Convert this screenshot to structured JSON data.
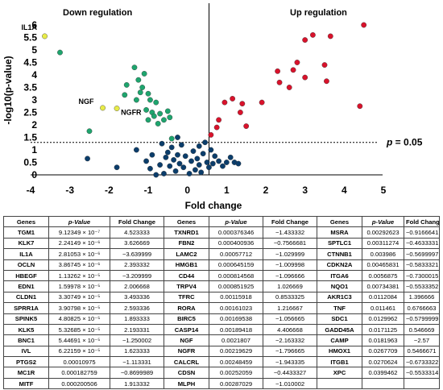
{
  "chart_data": {
    "type": "scatter",
    "xlabel": "Fold change",
    "ylabel": "-log10(p-value)",
    "xlim": [
      -4,
      5
    ],
    "ylim": [
      0,
      6
    ],
    "x_ticks": [
      "-4",
      "-3",
      "-2",
      "-1",
      "0",
      "1",
      "2",
      "3",
      "4",
      "5"
    ],
    "y_ticks": [
      "0",
      "0.5",
      "1",
      "1.5",
      "2",
      "2.5",
      "3",
      "3.5",
      "4",
      "4.5",
      "5",
      "5.5",
      "6"
    ],
    "threshold": {
      "y": 1.3,
      "label_prefix": "p",
      "label_suffix": " = 0.05"
    },
    "region_labels": {
      "down": "Down regulation",
      "up": "Up regulation"
    },
    "annotations": [
      {
        "text": "IL1A",
        "x": -3.64,
        "y": 5.55
      },
      {
        "text": "NGF",
        "x": -2.16,
        "y": 2.68
      },
      {
        "text": "NGFR",
        "x": -1.8,
        "y": 2.66
      }
    ],
    "series": [
      {
        "color": "#d9122b",
        "points": [
          [
            0.6,
            1.6
          ],
          [
            0.75,
            1.9
          ],
          [
            0.8,
            2.2
          ],
          [
            0.95,
            2.9
          ],
          [
            1.15,
            3.05
          ],
          [
            1.35,
            2.5
          ],
          [
            1.4,
            2.85
          ],
          [
            1.5,
            1.95
          ],
          [
            1.9,
            2.9
          ],
          [
            2.3,
            4.15
          ],
          [
            2.35,
            3.7
          ],
          [
            2.6,
            3.5
          ],
          [
            2.7,
            4.2
          ],
          [
            2.8,
            4.5
          ],
          [
            3.0,
            5.4
          ],
          [
            3.0,
            3.9
          ],
          [
            3.2,
            5.6
          ],
          [
            3.5,
            4.4
          ],
          [
            3.55,
            3.75
          ],
          [
            3.65,
            5.55
          ],
          [
            4.4,
            2.75
          ],
          [
            4.5,
            6.0
          ]
        ]
      },
      {
        "color": "#1ea56e",
        "points": [
          [
            -3.25,
            4.9
          ],
          [
            -2.5,
            1.75
          ],
          [
            -1.6,
            3.2
          ],
          [
            -1.55,
            3.6
          ],
          [
            -1.35,
            4.3
          ],
          [
            -1.3,
            3.0
          ],
          [
            -1.25,
            3.8
          ],
          [
            -1.2,
            3.3
          ],
          [
            -1.15,
            3.5
          ],
          [
            -1.1,
            4.05
          ],
          [
            -1.05,
            2.6
          ],
          [
            -1.0,
            2.2
          ],
          [
            -0.95,
            3.0
          ],
          [
            -0.9,
            2.5
          ],
          [
            -0.85,
            2.35
          ],
          [
            -0.8,
            2.9
          ],
          [
            -0.75,
            2.05
          ],
          [
            -0.7,
            2.45
          ],
          [
            -0.6,
            2.2
          ],
          [
            -0.5,
            2.55
          ],
          [
            -0.45,
            2.3
          ],
          [
            -0.4,
            1.45
          ],
          [
            -1.0,
            3.25
          ]
        ]
      },
      {
        "color": "#0b3d6b",
        "points": [
          [
            -2.55,
            0.65
          ],
          [
            -1.8,
            0.3
          ],
          [
            -1.05,
            0.55
          ],
          [
            -0.95,
            0.25
          ],
          [
            -0.9,
            0.8
          ],
          [
            -0.8,
            0.0
          ],
          [
            -0.7,
            0.4
          ],
          [
            -0.65,
            1.25
          ],
          [
            -0.6,
            0.05
          ],
          [
            -0.55,
            0.7
          ],
          [
            -0.5,
            0.9
          ],
          [
            -0.45,
            0.35
          ],
          [
            -0.4,
            1.1
          ],
          [
            -0.35,
            0.6
          ],
          [
            -0.3,
            0.15
          ],
          [
            -0.25,
            0.8
          ],
          [
            -0.2,
            0.45
          ],
          [
            -0.15,
            1.2
          ],
          [
            -0.1,
            0.3
          ],
          [
            -0.05,
            0.75
          ],
          [
            0.05,
            0.05
          ],
          [
            0.1,
            0.55
          ],
          [
            0.15,
            0.95
          ],
          [
            0.2,
            0.2
          ],
          [
            0.25,
            0.65
          ],
          [
            0.3,
            0.4
          ],
          [
            0.35,
            0.1
          ],
          [
            0.4,
            0.85
          ],
          [
            0.45,
            1.3
          ],
          [
            0.5,
            0.5
          ],
          [
            0.55,
            0.3
          ],
          [
            0.6,
            1.0
          ],
          [
            0.65,
            0.45
          ],
          [
            0.7,
            0.75
          ],
          [
            0.8,
            0.55
          ],
          [
            0.9,
            0.35
          ],
          [
            1.0,
            0.5
          ],
          [
            1.1,
            0.7
          ],
          [
            1.2,
            0.5
          ],
          [
            1.3,
            0.45
          ],
          [
            -1.3,
            1.0
          ],
          [
            -0.25,
            1.5
          ],
          [
            0.3,
            1.15
          ]
        ]
      },
      {
        "color": "#e8ec48",
        "points": [
          [
            -3.64,
            5.55
          ],
          [
            -2.16,
            2.68
          ],
          [
            -1.8,
            2.66
          ]
        ]
      }
    ]
  },
  "table": {
    "headers": [
      "Genes",
      "p-Value",
      "Fold Change",
      "Genes",
      "p-Value",
      "Fold Change",
      "Genes",
      "p-Value",
      "Fold Change"
    ],
    "rows": [
      [
        "TGM1",
        "9.12349 × 10⁻⁷",
        "4.523333",
        "TXNRD1",
        "0.000376346",
        "−1.433332",
        "MSRA",
        "0.00292623",
        "−0.9166641"
      ],
      [
        "KLK7",
        "2.24149 × 10⁻⁶",
        "3.626669",
        "FBN2",
        "0.000400936",
        "−0.7566681",
        "SPTLC1",
        "0.00311274",
        "−0.4633331"
      ],
      [
        "IL1A",
        "2.81053 × 10⁻⁶",
        "−3.639999",
        "LAMC2",
        "0.00057712",
        "−1.029999",
        "CTNNB1",
        "0.003986",
        "−0.5699997"
      ],
      [
        "OCLN",
        "3.86745 × 10⁻⁶",
        "2.393332",
        "HMGB1",
        "0.000645159",
        "−1.009998",
        "CDKN2A",
        "0.00465831",
        "−0.5833321"
      ],
      [
        "HBEGF",
        "1.13262 × 10⁻⁵",
        "−3.209999",
        "CD44",
        "0.000814568",
        "−1.096666",
        "ITGA6",
        "0.0056875",
        "−0.7300015"
      ],
      [
        "EDN1",
        "1.59978 × 10⁻⁵",
        "2.006668",
        "TRPV4",
        "0.000851925",
        "1.026669",
        "NQO1",
        "0.00734381",
        "−0.5533352"
      ],
      [
        "CLDN1",
        "3.30749 × 10⁻⁵",
        "3.493336",
        "TFRC",
        "0.00115918",
        "0.8533325",
        "AKR1C3",
        "0.0112084",
        "1.396666"
      ],
      [
        "SPRR1A",
        "3.90798 × 10⁻⁵",
        "2.593336",
        "RORA",
        "0.00161023",
        "1.216667",
        "TNF",
        "0.011461",
        "0.6766663"
      ],
      [
        "SPINK5",
        "4.80825 × 10⁻⁵",
        "1.893333",
        "BIRC5",
        "0.00169538",
        "−1.056665",
        "SDC1",
        "0.0129962",
        "−0.5799999"
      ],
      [
        "KLK5",
        "5.32685 × 10⁻⁵",
        "2.193331",
        "CASP14",
        "0.00189418",
        "4.406668",
        "GADD45A",
        "0.0171125",
        "0.546669"
      ],
      [
        "BNC1",
        "5.44691 × 10⁻⁵",
        "−1.250002",
        "NGF",
        "0.0021807",
        "−2.163332",
        "CAMP",
        "0.0181963",
        "−2.57"
      ],
      [
        "IVL",
        "6.22159 × 10⁻⁵",
        "1.623333",
        "NGFR",
        "0.00219629",
        "−1.796665",
        "HMOX1",
        "0.0267709",
        "0.5466671"
      ],
      [
        "PTGS2",
        "0.00010975",
        "−1.113331",
        "CALCRL",
        "0.00248459",
        "−1.943335",
        "ITGB1",
        "0.0270624",
        "−0.6733322"
      ],
      [
        "MC1R",
        "0.000182759",
        "−0.8699989",
        "CDSN",
        "0.00252059",
        "−0.4433327",
        "XPC",
        "0.0399462",
        "−0.5533314"
      ],
      [
        "MITF",
        "0.000200506",
        "1.913332",
        "MLPH",
        "0.00287029",
        "−1.010002",
        "",
        "",
        ""
      ]
    ]
  }
}
